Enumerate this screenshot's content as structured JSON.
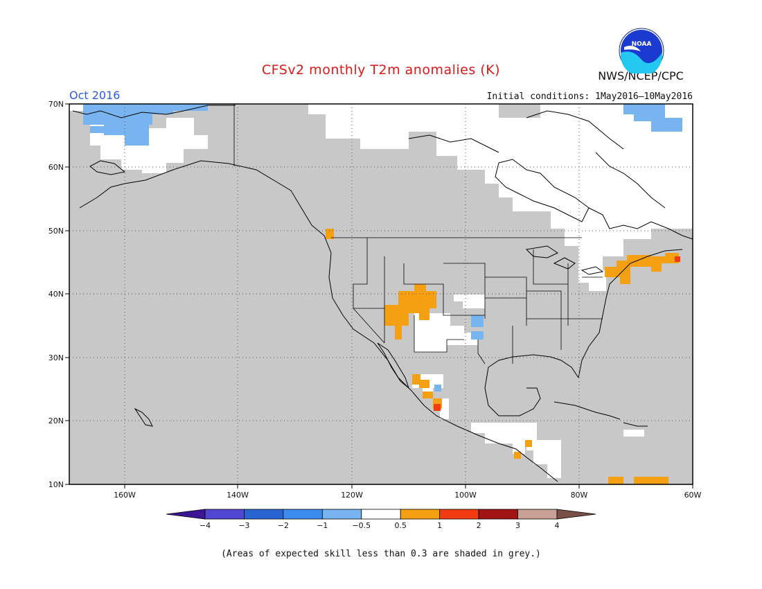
{
  "header": {
    "title": "CFSv2 monthly T2m anomalies (K)",
    "month": "Oct 2016",
    "initial_conditions": "Initial conditions: 1May2016—10May2016",
    "agency": "NWS/NCEP/CPC",
    "logo_text": "NOAA"
  },
  "map": {
    "lat_labels": [
      "70N",
      "60N",
      "50N",
      "40N",
      "30N",
      "20N",
      "10N"
    ],
    "lon_labels": [
      "160W",
      "140W",
      "120W",
      "100W",
      "80W",
      "60W"
    ],
    "colors": {
      "low_skill_grey": "#c8c8c8",
      "neutral": "#ffffff",
      "warm_0_5_1": "#f5a012",
      "warm_1_2": "#f03c10",
      "cool_m1_m0_5": "#78b4f0"
    }
  },
  "colorbar": {
    "labels": [
      "−4",
      "−3",
      "−2",
      "−1",
      "−0.5",
      "0.5",
      "1",
      "2",
      "3",
      "4"
    ],
    "colors": [
      "#3c1496",
      "#5046d2",
      "#2864d2",
      "#3c8cf0",
      "#78b4f0",
      "#ffffff",
      "#f5a012",
      "#f03c10",
      "#a01414",
      "#c8a096",
      "#785046"
    ]
  },
  "footnote": "(Areas of expected skill less than 0.3 are shaded in grey.)"
}
